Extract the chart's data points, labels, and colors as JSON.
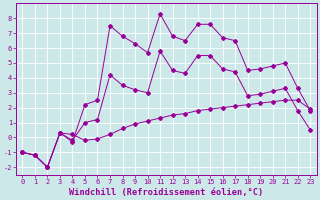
{
  "xlabel": "Windchill (Refroidissement éolien,°C)",
  "x_line1": [
    0,
    1,
    2,
    3,
    4,
    5,
    6,
    7,
    8,
    9,
    10,
    11,
    12,
    13,
    14,
    15,
    16,
    17,
    18,
    19,
    20,
    21,
    22,
    23
  ],
  "y_line1": [
    -1.0,
    -1.2,
    -2.0,
    0.3,
    0.2,
    -0.2,
    -0.1,
    0.2,
    0.6,
    0.9,
    1.1,
    1.3,
    1.5,
    1.6,
    1.8,
    1.9,
    2.0,
    2.1,
    2.2,
    2.3,
    2.4,
    2.5,
    2.5,
    1.9
  ],
  "x_line2": [
    0,
    1,
    2,
    3,
    4,
    5,
    6,
    7,
    8,
    9,
    10,
    11,
    12,
    13,
    14,
    15,
    16,
    17,
    18,
    19,
    20,
    21,
    22,
    23
  ],
  "y_line2": [
    -1.0,
    -1.2,
    -2.0,
    0.3,
    -0.2,
    1.0,
    1.2,
    4.2,
    3.5,
    3.2,
    3.0,
    5.8,
    4.5,
    4.3,
    5.5,
    5.5,
    4.6,
    4.4,
    2.8,
    2.9,
    3.1,
    3.3,
    1.8,
    0.5
  ],
  "x_line3": [
    0,
    1,
    2,
    3,
    4,
    5,
    6,
    7,
    8,
    9,
    10,
    11,
    12,
    13,
    14,
    15,
    16,
    17,
    18,
    19,
    20,
    21,
    22,
    23
  ],
  "y_line3": [
    -1.0,
    -1.2,
    -2.0,
    0.3,
    -0.3,
    2.2,
    2.5,
    7.5,
    6.8,
    6.3,
    5.7,
    8.3,
    6.8,
    6.5,
    7.6,
    7.6,
    6.7,
    6.5,
    4.5,
    4.6,
    4.8,
    5.0,
    3.3,
    1.8
  ],
  "line_color": "#990099",
  "marker": "D",
  "marker_size": 2.0,
  "bg_color": "#cce8e8",
  "grid_color": "#ffffff",
  "ylim": [
    -2.5,
    9.0
  ],
  "xlim": [
    -0.5,
    23.5
  ],
  "yticks": [
    -2,
    -1,
    0,
    1,
    2,
    3,
    4,
    5,
    6,
    7,
    8
  ],
  "xticks": [
    0,
    1,
    2,
    3,
    4,
    5,
    6,
    7,
    8,
    9,
    10,
    11,
    12,
    13,
    14,
    15,
    16,
    17,
    18,
    19,
    20,
    21,
    22,
    23
  ],
  "tick_fontsize": 5.0,
  "xlabel_fontsize": 6.2
}
